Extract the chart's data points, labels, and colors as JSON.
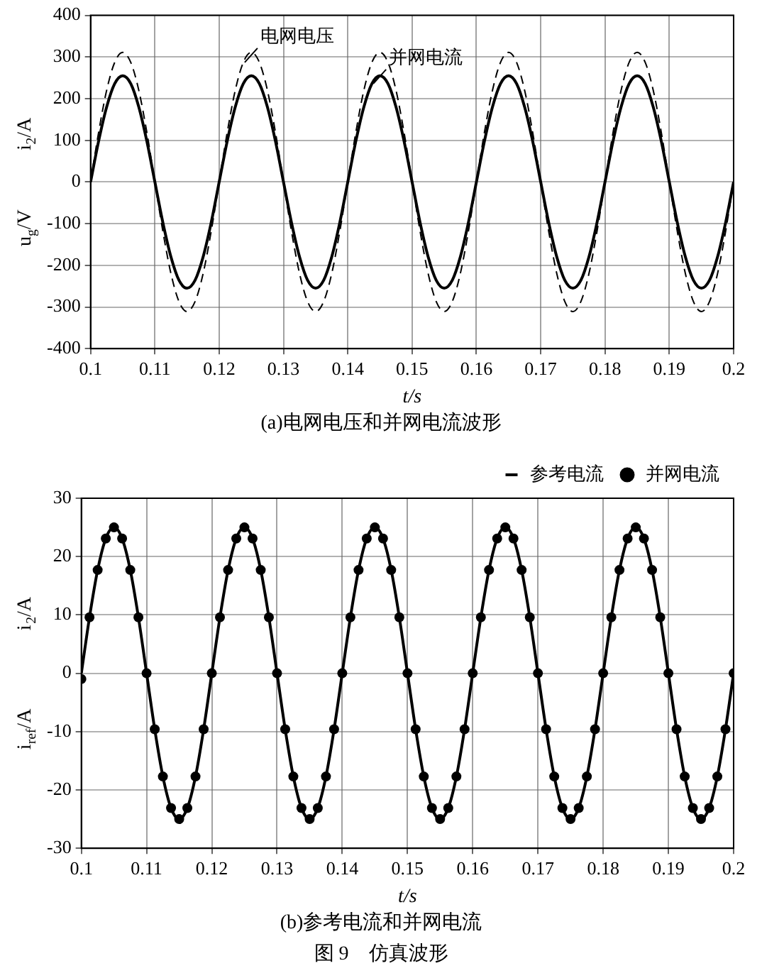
{
  "chart_data": [
    {
      "type": "line",
      "title": "(a)电网电压和并网电流波形",
      "xlabel": "t/s",
      "ylabel": "u$_{g}$/V            i$_{2}$/A",
      "x": [
        0.1,
        0.10125,
        0.1025,
        0.10375,
        0.105,
        0.10625,
        0.1075,
        0.10875,
        0.11,
        0.11125,
        0.1125,
        0.11375,
        0.115,
        0.11625,
        0.1175,
        0.11875,
        0.12,
        0.12125,
        0.1225,
        0.12375,
        0.125,
        0.12625,
        0.1275,
        0.12875,
        0.13,
        0.13125,
        0.1325,
        0.13375,
        0.135,
        0.13625,
        0.1375,
        0.13875,
        0.14,
        0.14125,
        0.1425,
        0.14375,
        0.145,
        0.14625,
        0.1475,
        0.14875,
        0.15,
        0.15125,
        0.1525,
        0.15375,
        0.155,
        0.15625,
        0.1575,
        0.15875,
        0.16,
        0.16125,
        0.1625,
        0.16375,
        0.165,
        0.16625,
        0.1675,
        0.16875,
        0.17,
        0.17125,
        0.1725,
        0.17375,
        0.175,
        0.17625,
        0.1775,
        0.17875,
        0.18,
        0.18125,
        0.1825,
        0.18375,
        0.185,
        0.18625,
        0.1875,
        0.18875,
        0.19,
        0.19125,
        0.1925,
        0.19375,
        0.195,
        0.19625,
        0.1975,
        0.19875,
        0.2
      ],
      "series": [
        {
          "name": "电网电压",
          "color": "#000000",
          "line_style": "dashed",
          "values": [
            0,
            119,
            220,
            287,
            311,
            287,
            220,
            119,
            0,
            -119,
            -220,
            -287,
            -311,
            -287,
            -220,
            -119,
            0,
            119,
            220,
            287,
            311,
            287,
            220,
            119,
            0,
            -119,
            -220,
            -287,
            -311,
            -287,
            -220,
            -119,
            0,
            119,
            220,
            287,
            311,
            287,
            220,
            119,
            0,
            -119,
            -220,
            -287,
            -311,
            -287,
            -220,
            -119,
            0,
            119,
            220,
            287,
            311,
            287,
            220,
            119,
            0,
            -119,
            -220,
            -287,
            -311,
            -287,
            -220,
            -119,
            0,
            119,
            220,
            287,
            311,
            287,
            220,
            119,
            0,
            -119,
            -220,
            -287,
            -311,
            -287,
            -220,
            -119,
            0
          ]
        },
        {
          "name": "并网电流",
          "color": "#000000",
          "line_style": "solid",
          "values": [
            0,
            98,
            180,
            236,
            255,
            236,
            180,
            98,
            0,
            -98,
            -180,
            -236,
            -255,
            -236,
            -180,
            -98,
            0,
            98,
            180,
            236,
            255,
            236,
            180,
            98,
            0,
            -98,
            -180,
            -236,
            -255,
            -236,
            -180,
            -98,
            0,
            98,
            180,
            236,
            255,
            236,
            180,
            98,
            0,
            -98,
            -180,
            -236,
            -255,
            -236,
            -180,
            -98,
            0,
            98,
            180,
            236,
            255,
            236,
            180,
            98,
            0,
            -98,
            -180,
            -236,
            -255,
            -236,
            -180,
            -98,
            0,
            98,
            180,
            236,
            255,
            236,
            180,
            98,
            0,
            -98,
            -180,
            -236,
            -255,
            -236,
            -180,
            -98,
            0
          ]
        }
      ],
      "xlim": [
        0.1,
        0.2
      ],
      "xticks": [
        0.1,
        0.11,
        0.12,
        0.13,
        0.14,
        0.15,
        0.16,
        0.17,
        0.18,
        0.19,
        0.2
      ],
      "ylim": [
        -400,
        400
      ],
      "yticks": [
        -400,
        -300,
        -200,
        -100,
        0,
        100,
        200,
        300,
        400
      ],
      "grid": true,
      "marker": "none",
      "legend": false
    },
    {
      "type": "line",
      "title": "(b)参考电流和并网电流",
      "xlabel": "t/s",
      "ylabel": "i$_{ref}$/A                i$_{2}$/A",
      "x": [
        0.1,
        0.10125,
        0.1025,
        0.10375,
        0.105,
        0.10625,
        0.1075,
        0.10875,
        0.11,
        0.11125,
        0.1125,
        0.11375,
        0.115,
        0.11625,
        0.1175,
        0.11875,
        0.12,
        0.12125,
        0.1225,
        0.12375,
        0.125,
        0.12625,
        0.1275,
        0.12875,
        0.13,
        0.13125,
        0.1325,
        0.13375,
        0.135,
        0.13625,
        0.1375,
        0.13875,
        0.14,
        0.14125,
        0.1425,
        0.14375,
        0.145,
        0.14625,
        0.1475,
        0.14875,
        0.15,
        0.15125,
        0.1525,
        0.15375,
        0.155,
        0.15625,
        0.1575,
        0.15875,
        0.16,
        0.16125,
        0.1625,
        0.16375,
        0.165,
        0.16625,
        0.1675,
        0.16875,
        0.17,
        0.17125,
        0.1725,
        0.17375,
        0.175,
        0.17625,
        0.1775,
        0.17875,
        0.18,
        0.18125,
        0.1825,
        0.18375,
        0.185,
        0.18625,
        0.1875,
        0.18875,
        0.19,
        0.19125,
        0.1925,
        0.19375,
        0.195,
        0.19625,
        0.1975,
        0.19875,
        0.2
      ],
      "series": [
        {
          "name": "参考电流",
          "color": "#000000",
          "line_style": "solid",
          "marker": "none",
          "values": [
            0,
            9.6,
            17.7,
            23.1,
            25,
            23.1,
            17.7,
            9.6,
            0,
            -9.6,
            -17.7,
            -23.1,
            -25,
            -23.1,
            -17.7,
            -9.6,
            0,
            9.6,
            17.7,
            23.1,
            25,
            23.1,
            17.7,
            9.6,
            0,
            -9.6,
            -17.7,
            -23.1,
            -25,
            -23.1,
            -17.7,
            -9.6,
            0,
            9.6,
            17.7,
            23.1,
            25,
            23.1,
            17.7,
            9.6,
            0,
            -9.6,
            -17.7,
            -23.1,
            -25,
            -23.1,
            -17.7,
            -9.6,
            0,
            9.6,
            17.7,
            23.1,
            25,
            23.1,
            17.7,
            9.6,
            0,
            -9.6,
            -17.7,
            -23.1,
            -25,
            -23.1,
            -17.7,
            -9.6,
            0,
            9.6,
            17.7,
            23.1,
            25,
            23.1,
            17.7,
            9.6,
            0,
            -9.6,
            -17.7,
            -23.1,
            -25,
            -23.1,
            -17.7,
            -9.6,
            0
          ]
        },
        {
          "name": "并网电流",
          "type": "scatter",
          "color": "#000000",
          "marker": "circle",
          "values": [
            -1,
            9.6,
            17.7,
            23.1,
            25,
            23.1,
            17.7,
            9.6,
            0,
            -9.6,
            -17.7,
            -23.1,
            -25,
            -23.1,
            -17.7,
            -9.6,
            0,
            9.6,
            17.7,
            23.1,
            25,
            23.1,
            17.7,
            9.6,
            0,
            -9.6,
            -17.7,
            -23.1,
            -25,
            -23.1,
            -17.7,
            -9.6,
            0,
            9.6,
            17.7,
            23.1,
            25,
            23.1,
            17.7,
            9.6,
            0,
            -9.6,
            -17.7,
            -23.1,
            -25,
            -23.1,
            -17.7,
            -9.6,
            0,
            9.6,
            17.7,
            23.1,
            25,
            23.1,
            17.7,
            9.6,
            0,
            -9.6,
            -17.7,
            -23.1,
            -25,
            -23.1,
            -17.7,
            -9.6,
            0,
            9.6,
            17.7,
            23.1,
            25,
            23.1,
            17.7,
            9.6,
            0,
            -9.6,
            -17.7,
            -23.1,
            -25,
            -23.1,
            -17.7,
            -9.6,
            0
          ]
        }
      ],
      "xlim": [
        0.1,
        0.2
      ],
      "xticks": [
        0.1,
        0.11,
        0.12,
        0.13,
        0.14,
        0.15,
        0.16,
        0.17,
        0.18,
        0.19,
        0.2
      ],
      "ylim": [
        -30,
        30
      ],
      "yticks": [
        -30,
        -20,
        -10,
        0,
        10,
        20,
        30
      ],
      "grid": true,
      "legend": "top right",
      "annotations": [
        "图 9　仿真波形"
      ]
    }
  ]
}
